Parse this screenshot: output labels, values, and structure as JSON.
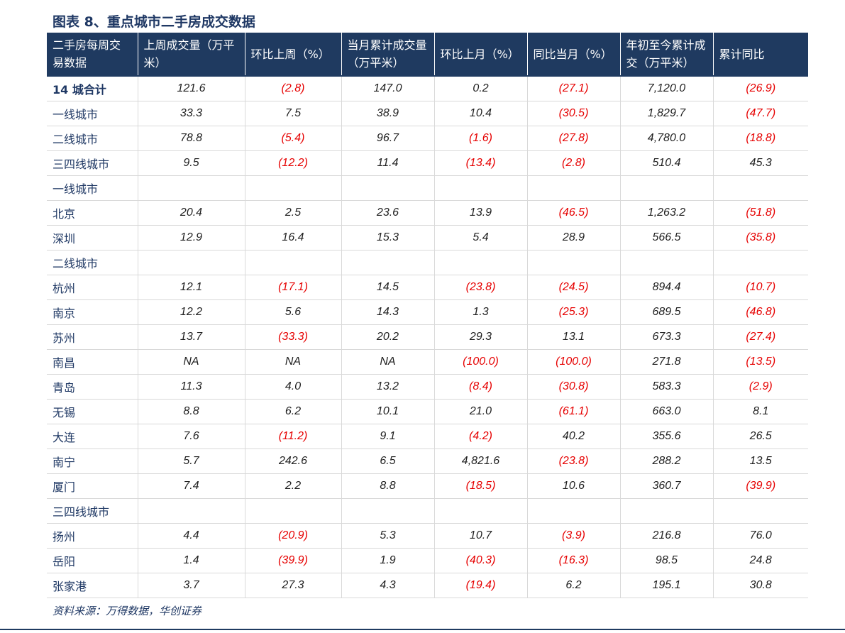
{
  "title": "图表 8、重点城市二手房成交数据",
  "headers": [
    "二手房每周交易数据",
    "上周成交量（万平米）",
    "环比上周（%）",
    "当月累计成交量（万平米）",
    "环比上月（%）",
    "同比当月（%）",
    "年初至今累计成交（万平米）",
    "累计同比"
  ],
  "rows": [
    {
      "name": "14 城合计",
      "cells": [
        "121.6",
        "(2.8)",
        "147.0",
        "0.2",
        "(27.1)",
        "7,120.0",
        "(26.9)"
      ]
    },
    {
      "name": "一线城市",
      "cells": [
        "33.3",
        "7.5",
        "38.9",
        "10.4",
        "(30.5)",
        "1,829.7",
        "(47.7)"
      ]
    },
    {
      "name": "二线城市",
      "cells": [
        "78.8",
        "(5.4)",
        "96.7",
        "(1.6)",
        "(27.8)",
        "4,780.0",
        "(18.8)"
      ]
    },
    {
      "name": "三四线城市",
      "cells": [
        "9.5",
        "(12.2)",
        "11.4",
        "(13.4)",
        "(2.8)",
        "510.4",
        "45.3"
      ]
    },
    {
      "name": "一线城市",
      "cells": [
        "",
        "",
        "",
        "",
        "",
        "",
        ""
      ]
    },
    {
      "name": "北京",
      "cells": [
        "20.4",
        "2.5",
        "23.6",
        "13.9",
        "(46.5)",
        "1,263.2",
        "(51.8)"
      ]
    },
    {
      "name": "深圳",
      "cells": [
        "12.9",
        "16.4",
        "15.3",
        "5.4",
        "28.9",
        "566.5",
        "(35.8)"
      ]
    },
    {
      "name": "二线城市",
      "cells": [
        "",
        "",
        "",
        "",
        "",
        "",
        ""
      ]
    },
    {
      "name": "杭州",
      "cells": [
        "12.1",
        "(17.1)",
        "14.5",
        "(23.8)",
        "(24.5)",
        "894.4",
        "(10.7)"
      ]
    },
    {
      "name": "南京",
      "cells": [
        "12.2",
        "5.6",
        "14.3",
        "1.3",
        "(25.3)",
        "689.5",
        "(46.8)"
      ]
    },
    {
      "name": "苏州",
      "cells": [
        "13.7",
        "(33.3)",
        "20.2",
        "29.3",
        "13.1",
        "673.3",
        "(27.4)"
      ]
    },
    {
      "name": "南昌",
      "cells": [
        "NA",
        "NA",
        "NA",
        "(100.0)",
        "(100.0)",
        "271.8",
        "(13.5)"
      ]
    },
    {
      "name": "青岛",
      "cells": [
        "11.3",
        "4.0",
        "13.2",
        "(8.4)",
        "(30.8)",
        "583.3",
        "(2.9)"
      ]
    },
    {
      "name": "无锡",
      "cells": [
        "8.8",
        "6.2",
        "10.1",
        "21.0",
        "(61.1)",
        "663.0",
        "8.1"
      ]
    },
    {
      "name": "大连",
      "cells": [
        "7.6",
        "(11.2)",
        "9.1",
        "(4.2)",
        "40.2",
        "355.6",
        "26.5"
      ]
    },
    {
      "name": "南宁",
      "cells": [
        "5.7",
        "242.6",
        "6.5",
        "4,821.6",
        "(23.8)",
        "288.2",
        "13.5"
      ]
    },
    {
      "name": "厦门",
      "cells": [
        "7.4",
        "2.2",
        "8.8",
        "(18.5)",
        "10.6",
        "360.7",
        "(39.9)"
      ]
    },
    {
      "name": "三四线城市",
      "cells": [
        "",
        "",
        "",
        "",
        "",
        "",
        ""
      ]
    },
    {
      "name": "扬州",
      "cells": [
        "4.4",
        "(20.9)",
        "5.3",
        "10.7",
        "(3.9)",
        "216.8",
        "76.0"
      ]
    },
    {
      "name": "岳阳",
      "cells": [
        "1.4",
        "(39.9)",
        "1.9",
        "(40.3)",
        "(16.3)",
        "98.5",
        "24.8"
      ]
    },
    {
      "name": "张家港",
      "cells": [
        "3.7",
        "27.3",
        "4.3",
        "(19.4)",
        "6.2",
        "195.1",
        "30.8"
      ]
    }
  ],
  "source": "资料来源：万得数据，华创证券",
  "colors": {
    "header_bg": "#1f3a60",
    "title_text": "#1f3864",
    "negative": "#e60000"
  }
}
